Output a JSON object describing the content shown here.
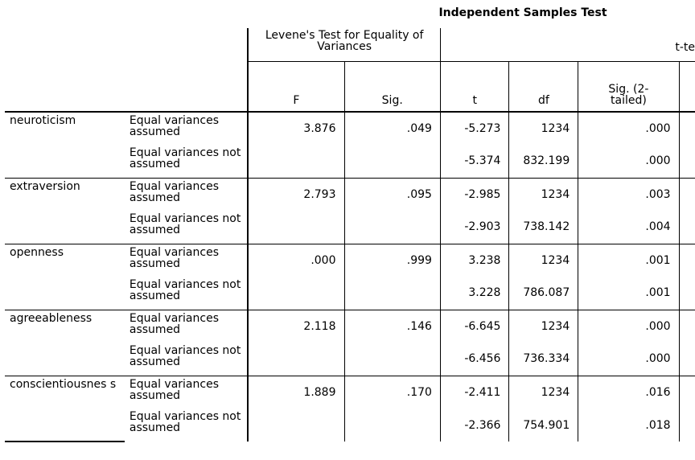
{
  "title": "Independent Samples Test",
  "header": {
    "levene": "Levene's Test for Equality of Variances",
    "ttest": "t-te",
    "cols": [
      "F",
      "Sig.",
      "t",
      "df",
      "Sig. (2-tailed)"
    ]
  },
  "rows": [
    {
      "variable": "neuroticism",
      "assumed": {
        "label": "Equal variances assumed",
        "F": "3.876",
        "sig": ".049",
        "t": "-5.273",
        "df": "1234",
        "sig2": ".000"
      },
      "not_assumed": {
        "label": "Equal variances not assumed",
        "t": "-5.374",
        "df": "832.199",
        "sig2": ".000"
      }
    },
    {
      "variable": "extraversion",
      "assumed": {
        "label": "Equal variances assumed",
        "F": "2.793",
        "sig": ".095",
        "t": "-2.985",
        "df": "1234",
        "sig2": ".003"
      },
      "not_assumed": {
        "label": "Equal variances not assumed",
        "t": "-2.903",
        "df": "738.142",
        "sig2": ".004"
      }
    },
    {
      "variable": "openness",
      "assumed": {
        "label": "Equal variances assumed",
        "F": ".000",
        "sig": ".999",
        "t": "3.238",
        "df": "1234",
        "sig2": ".001"
      },
      "not_assumed": {
        "label": "Equal variances not assumed",
        "t": "3.228",
        "df": "786.087",
        "sig2": ".001"
      }
    },
    {
      "variable": "agreeableness",
      "assumed": {
        "label": "Equal variances assumed",
        "F": "2.118",
        "sig": ".146",
        "t": "-6.645",
        "df": "1234",
        "sig2": ".000"
      },
      "not_assumed": {
        "label": "Equal variances not assumed",
        "t": "-6.456",
        "df": "736.334",
        "sig2": ".000"
      }
    },
    {
      "variable": "conscientiousnes s",
      "assumed": {
        "label": "Equal variances assumed",
        "F": "1.889",
        "sig": ".170",
        "t": "-2.411",
        "df": "1234",
        "sig2": ".016"
      },
      "not_assumed": {
        "label": "Equal variances not assumed",
        "t": "-2.366",
        "df": "754.901",
        "sig2": ".018"
      }
    }
  ]
}
